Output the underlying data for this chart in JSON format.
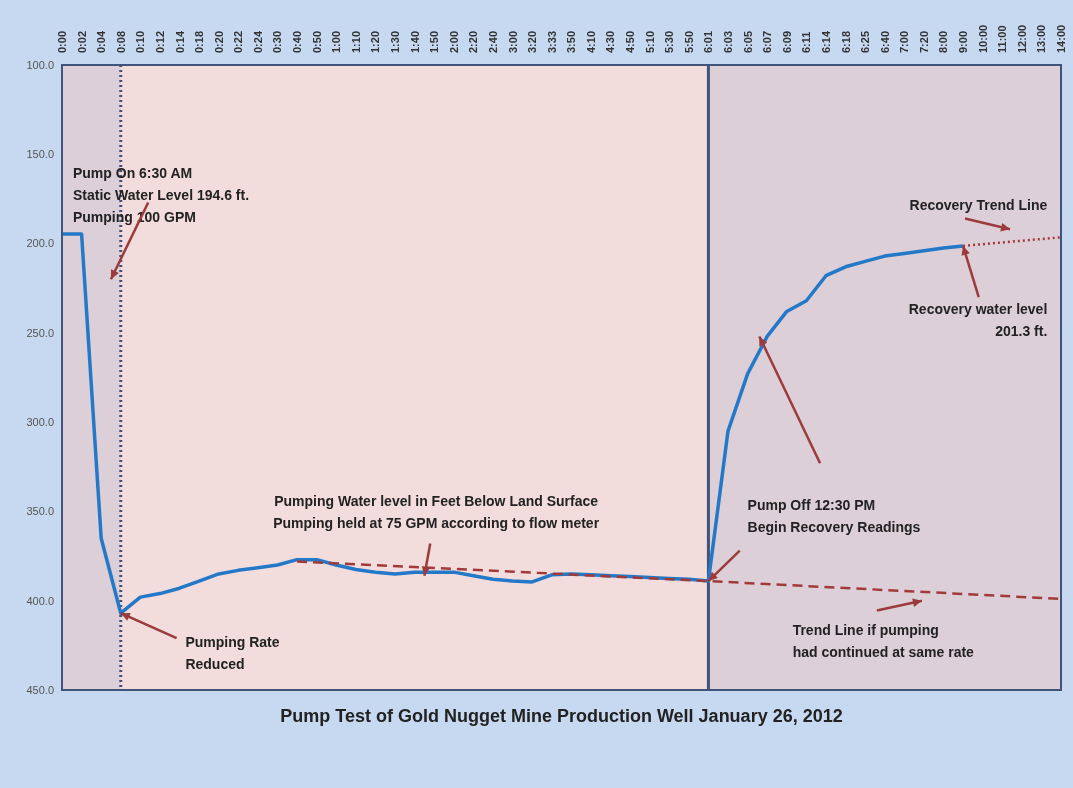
{
  "chart_data": {
    "type": "line",
    "title": "Pump Test of Gold Nugget Mine Production Well January 26, 2012",
    "categories": [
      "0:00",
      "0:02",
      "0:04",
      "0:08",
      "0:10",
      "0:12",
      "0:14",
      "0:18",
      "0:20",
      "0:22",
      "0:24",
      "0:30",
      "0:40",
      "0:50",
      "1:00",
      "1:10",
      "1:20",
      "1:30",
      "1:40",
      "1:50",
      "2:00",
      "2:20",
      "2:40",
      "3:00",
      "3:20",
      "3:33",
      "3:50",
      "4:10",
      "4:30",
      "4:50",
      "5:10",
      "5:30",
      "5:50",
      "6:01",
      "6:03",
      "6:05",
      "6:07",
      "6:09",
      "6:11",
      "6:14",
      "6:18",
      "6:25",
      "6:40",
      "7:00",
      "7:20",
      "8:00",
      "9:00",
      "10:00",
      "11:00",
      "12:00",
      "13:00",
      "14:00"
    ],
    "series": [
      {
        "color": "#2478c8",
        "line_style": "solid",
        "values": [
          194.6,
          194.6,
          365,
          407,
          398,
          396,
          393,
          389,
          385,
          383,
          381.5,
          380,
          377,
          377,
          380,
          382.5,
          384,
          385,
          384,
          384,
          384,
          386,
          388,
          389,
          389.5,
          385.5,
          385,
          385.5,
          386,
          386.5,
          387,
          387.5,
          388,
          389,
          305,
          273,
          252,
          238,
          232,
          218,
          213,
          210,
          207,
          205.5,
          204,
          202.5,
          201.3,
          null,
          null,
          null,
          null,
          null
        ]
      },
      {
        "color": "#a33a3a",
        "line_style": "dashed",
        "values": [
          null,
          null,
          null,
          null,
          null,
          null,
          null,
          null,
          null,
          null,
          null,
          null,
          378,
          null,
          null,
          null,
          null,
          null,
          null,
          null,
          null,
          null,
          null,
          null,
          null,
          null,
          null,
          null,
          null,
          null,
          null,
          null,
          null,
          389,
          null,
          null,
          null,
          null,
          null,
          null,
          null,
          null,
          null,
          null,
          null,
          null,
          null,
          null,
          null,
          null,
          null,
          399
        ]
      },
      {
        "color": "#a33a3a",
        "line_style": "dotted",
        "values": [
          null,
          null,
          null,
          null,
          null,
          null,
          null,
          null,
          null,
          null,
          null,
          null,
          null,
          null,
          null,
          null,
          null,
          null,
          null,
          null,
          null,
          null,
          null,
          null,
          null,
          null,
          null,
          null,
          null,
          null,
          null,
          null,
          null,
          null,
          null,
          null,
          null,
          null,
          null,
          null,
          null,
          null,
          null,
          null,
          null,
          null,
          201.3,
          null,
          null,
          null,
          null,
          196.5
        ]
      }
    ],
    "ylim": [
      450,
      100
    ],
    "yticks": [
      {
        "value": 100,
        "label": "100.0"
      },
      {
        "value": 150,
        "label": "150.0"
      },
      {
        "value": 200,
        "label": "200.0"
      },
      {
        "value": 250,
        "label": "250.0"
      },
      {
        "value": 300,
        "label": "300.0"
      },
      {
        "value": 350,
        "label": "350.0"
      },
      {
        "value": 400,
        "label": "400.0"
      },
      {
        "value": 450,
        "label": "450.0"
      }
    ],
    "grid": "y",
    "legend": false,
    "bands": [
      {
        "axis": "x",
        "from": "0:00",
        "to": "0:08",
        "color": "#dccfd7"
      },
      {
        "axis": "x",
        "from": "0:08",
        "to": "6:01",
        "color": "#f2dcdc"
      },
      {
        "axis": "x",
        "from": "6:01",
        "to": "14:00",
        "color": "#dccfd7"
      }
    ],
    "ref_lines": [
      {
        "axis": "x",
        "value": "0:08",
        "color": "#3f5478",
        "line_style": "dotted"
      },
      {
        "axis": "x",
        "value": "6:01",
        "color": "#3f5478",
        "line_style": "solid"
      }
    ],
    "annotations": [
      "Pump On 6:30 AM\nStatic Water Level 194.6 ft.\nPumping 100 GPM",
      "Pumping Water level in Feet Below Land Surface\nPumping held at 75 GPM according to flow meter",
      {
        "text": "Pump Off 12:30 PM\nBegin Recovery Readings",
        "x": "6:01",
        "y": 389
      },
      {
        "text": "Pumping Rate\nReduced",
        "x": "0:08",
        "y": 407
      },
      "Recovery Trend Line",
      {
        "text": "Recovery water level\n201.3 ft.",
        "x": "9:00",
        "y": 201.3
      },
      "Trend Line if pumping\nhad continued at same rate"
    ]
  }
}
